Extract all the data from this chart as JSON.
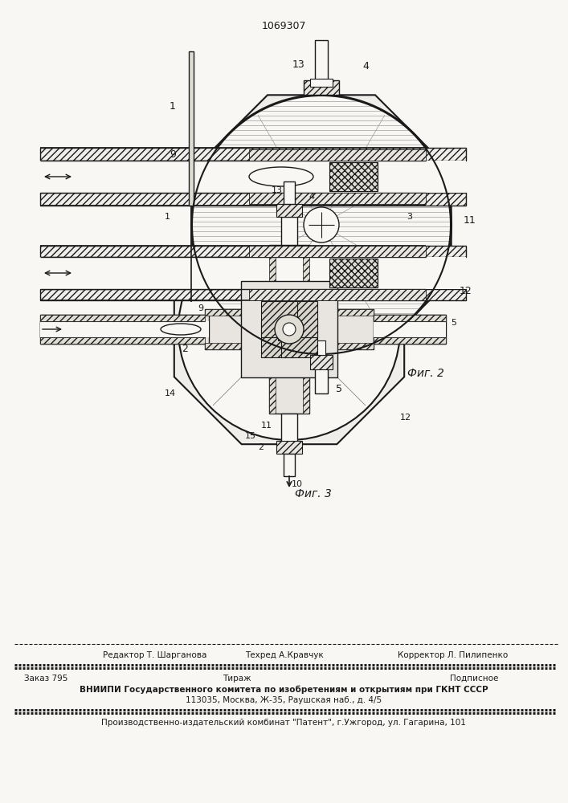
{
  "patent_number": "1069307",
  "bg_color": "#f8f7f4",
  "line_color": "#1a1a1a",
  "hatch_color": "#555555",
  "fig2_label": "Фиг. 2",
  "fig3_label": "Фиг. 3",
  "footer_line1_left": "Редактор Т. Шарганова",
  "footer_line1_mid": "Техред А.Кравчук",
  "footer_line1_right": "Корректор Л. Пилипенко",
  "footer_line2_left": "Заказ 795",
  "footer_line2_mid": "Тираж",
  "footer_line2_right": "Подписное",
  "footer_line3": "ВНИИПИ Государственного комитета по изобретениям и открытиям при ГКНТ СССР",
  "footer_line4": "113035, Москва, Ж-35, Раушская наб., д. 4/5",
  "footer_line5": "Производственно-издательский комбинат \"Патент\", г.Ужгород, ул. Гагарина, 101"
}
